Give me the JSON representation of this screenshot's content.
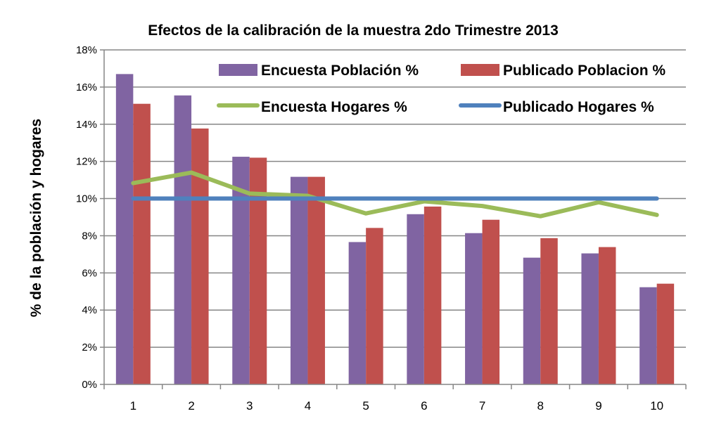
{
  "chart_data": {
    "type": "bar+line",
    "title": "Efectos de la calibración de la muestra 2do Trimestre 2013",
    "xlabel": "",
    "ylabel": "% de la población y hogares",
    "ylim": [
      0,
      18
    ],
    "yticks": [
      "0%",
      "2%",
      "4%",
      "6%",
      "8%",
      "10%",
      "12%",
      "14%",
      "16%",
      "18%"
    ],
    "grid": true,
    "legend_position": "top-right",
    "categories": [
      "1",
      "2",
      "3",
      "4",
      "5",
      "6",
      "7",
      "8",
      "9",
      "10"
    ],
    "series": [
      {
        "name": "Encuesta Población %",
        "kind": "bar",
        "color": "#8064A2",
        "values": [
          16.7,
          15.55,
          12.25,
          11.17,
          7.66,
          9.16,
          8.14,
          6.82,
          7.05,
          5.23
        ]
      },
      {
        "name": "Publicado Poblacion %",
        "kind": "bar",
        "color": "#C0504D",
        "values": [
          15.1,
          13.77,
          12.2,
          11.17,
          8.42,
          9.57,
          8.86,
          7.87,
          7.39,
          5.42
        ]
      },
      {
        "name": "Encuesta Hogares %",
        "kind": "line",
        "color": "#9BBB59",
        "values": [
          10.83,
          11.4,
          10.27,
          10.15,
          9.2,
          9.85,
          9.6,
          9.05,
          9.8,
          9.12
        ]
      },
      {
        "name": "Publicado Hogares %",
        "kind": "line",
        "color": "#4F81BD",
        "values": [
          10,
          10,
          10,
          10,
          10,
          10,
          10,
          10,
          10,
          10
        ]
      }
    ]
  }
}
